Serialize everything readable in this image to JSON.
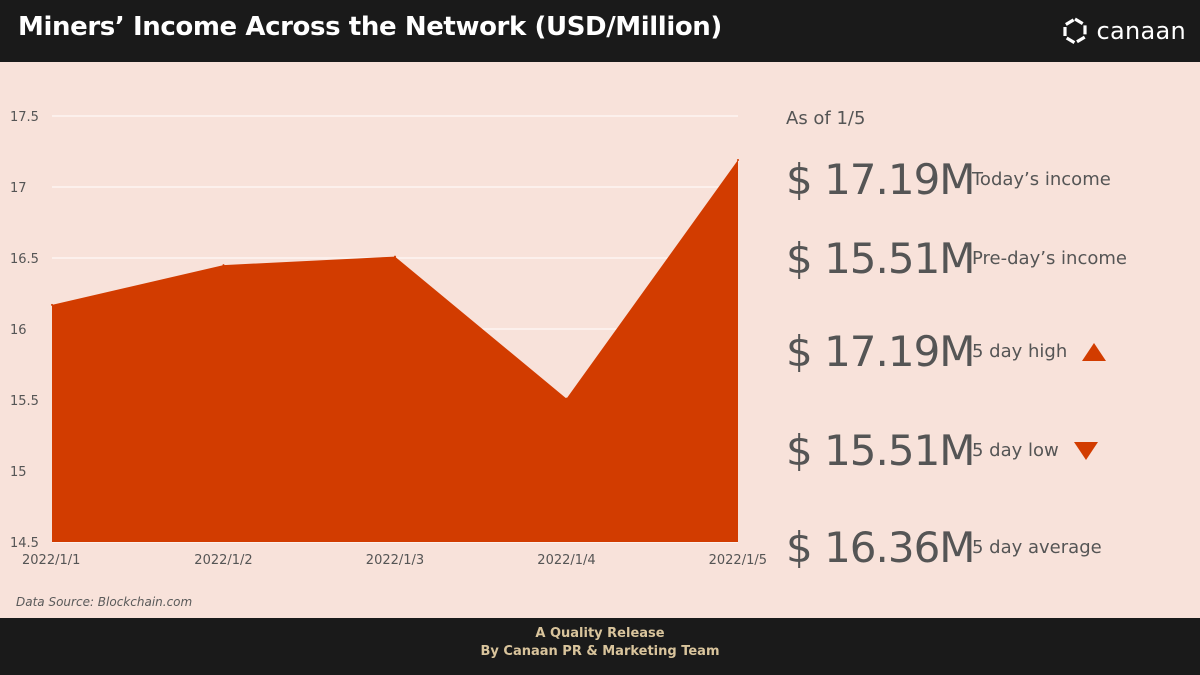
{
  "header": {
    "title": "Miners’ Income Across the Network (USD/Million)",
    "logo_text": "canaan"
  },
  "colors": {
    "accent": "#d23c00",
    "background": "#f8e2da",
    "bar": "#1a1a1a",
    "footer_text": "#d9c49c"
  },
  "chart_data": {
    "type": "area",
    "x": [
      "2022/1/1",
      "2022/1/2",
      "2022/1/3",
      "2022/1/4",
      "2022/1/5"
    ],
    "series": [
      {
        "values": [
          16.17,
          16.45,
          16.51,
          15.51,
          17.19
        ]
      }
    ],
    "ylim": [
      14.5,
      17.5
    ],
    "yticks": [
      "14.5",
      "15",
      "15.5",
      "16",
      "16.5",
      "17",
      "17.5"
    ],
    "grid": true,
    "legend": "none"
  },
  "source": "Data Source: Blockchain.com",
  "stats": {
    "as_of": "As of 1/5",
    "items": [
      {
        "value": "$ 17.19M",
        "label": "Today’s income",
        "indicator": "none"
      },
      {
        "value": "$ 15.51M",
        "label": "Pre-day’s income",
        "indicator": "none"
      },
      {
        "value": "$ 17.19M",
        "label": "5 day high",
        "indicator": "up-triangle-icon"
      },
      {
        "value": "$ 15.51M",
        "label": "5 day low",
        "indicator": "down-triangle-icon"
      },
      {
        "value": "$ 16.36M",
        "label": "5 day average",
        "indicator": "none"
      }
    ]
  },
  "footer": {
    "line1": "A Quality Release",
    "line2": "By Canaan PR & Marketing Team"
  }
}
